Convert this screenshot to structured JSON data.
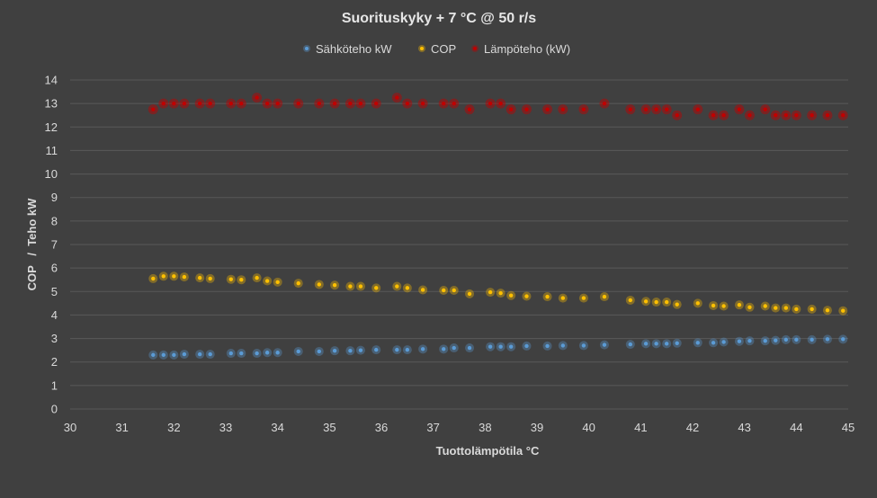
{
  "chart_data": {
    "type": "scatter",
    "title": "Suorituskyky + 7 °C @ 50 r/s",
    "xlabel": "Tuottolämpötila °C",
    "ylabel": "COP   /  Teho kW",
    "xlim": [
      30,
      45
    ],
    "ylim": [
      0,
      14
    ],
    "x_ticks": [
      30,
      31,
      32,
      33,
      34,
      35,
      36,
      37,
      38,
      39,
      40,
      41,
      42,
      43,
      44,
      45
    ],
    "y_ticks": [
      0,
      1,
      2,
      3,
      4,
      5,
      6,
      7,
      8,
      9,
      10,
      11,
      12,
      13,
      14
    ],
    "grid": "horizontal",
    "legend_position": "top",
    "series": [
      {
        "name": "Sähköteho kW",
        "color": "#5b9bd5",
        "points": [
          [
            31.6,
            2.3
          ],
          [
            31.8,
            2.3
          ],
          [
            32.0,
            2.3
          ],
          [
            32.2,
            2.33
          ],
          [
            32.5,
            2.33
          ],
          [
            32.7,
            2.33
          ],
          [
            33.1,
            2.37
          ],
          [
            33.3,
            2.37
          ],
          [
            33.6,
            2.37
          ],
          [
            33.8,
            2.4
          ],
          [
            34.0,
            2.4
          ],
          [
            34.4,
            2.45
          ],
          [
            34.8,
            2.45
          ],
          [
            35.1,
            2.48
          ],
          [
            35.4,
            2.48
          ],
          [
            35.6,
            2.5
          ],
          [
            35.9,
            2.52
          ],
          [
            36.3,
            2.52
          ],
          [
            36.5,
            2.52
          ],
          [
            36.8,
            2.55
          ],
          [
            37.2,
            2.55
          ],
          [
            37.4,
            2.6
          ],
          [
            37.7,
            2.6
          ],
          [
            38.1,
            2.65
          ],
          [
            38.3,
            2.65
          ],
          [
            38.5,
            2.65
          ],
          [
            38.8,
            2.68
          ],
          [
            39.2,
            2.68
          ],
          [
            39.5,
            2.7
          ],
          [
            39.9,
            2.7
          ],
          [
            40.3,
            2.73
          ],
          [
            40.8,
            2.75
          ],
          [
            41.1,
            2.78
          ],
          [
            41.3,
            2.78
          ],
          [
            41.5,
            2.78
          ],
          [
            41.7,
            2.8
          ],
          [
            42.1,
            2.82
          ],
          [
            42.4,
            2.82
          ],
          [
            42.6,
            2.85
          ],
          [
            42.9,
            2.88
          ],
          [
            43.1,
            2.9
          ],
          [
            43.4,
            2.9
          ],
          [
            43.6,
            2.92
          ],
          [
            43.8,
            2.95
          ],
          [
            44.0,
            2.95
          ],
          [
            44.3,
            2.95
          ],
          [
            44.6,
            2.97
          ],
          [
            44.9,
            2.97
          ]
        ]
      },
      {
        "name": "COP",
        "color": "#ffc000",
        "points": [
          [
            31.6,
            5.55
          ],
          [
            31.8,
            5.65
          ],
          [
            32.0,
            5.65
          ],
          [
            32.2,
            5.62
          ],
          [
            32.5,
            5.58
          ],
          [
            32.7,
            5.55
          ],
          [
            33.1,
            5.52
          ],
          [
            33.3,
            5.5
          ],
          [
            33.6,
            5.58
          ],
          [
            33.8,
            5.45
          ],
          [
            34.0,
            5.4
          ],
          [
            34.4,
            5.35
          ],
          [
            34.8,
            5.3
          ],
          [
            35.1,
            5.27
          ],
          [
            35.4,
            5.22
          ],
          [
            35.6,
            5.22
          ],
          [
            35.9,
            5.15
          ],
          [
            36.3,
            5.22
          ],
          [
            36.5,
            5.15
          ],
          [
            36.8,
            5.07
          ],
          [
            37.2,
            5.05
          ],
          [
            37.4,
            5.05
          ],
          [
            37.7,
            4.9
          ],
          [
            38.1,
            4.97
          ],
          [
            38.3,
            4.93
          ],
          [
            38.5,
            4.83
          ],
          [
            38.8,
            4.8
          ],
          [
            39.2,
            4.78
          ],
          [
            39.5,
            4.72
          ],
          [
            39.9,
            4.72
          ],
          [
            40.3,
            4.78
          ],
          [
            40.8,
            4.63
          ],
          [
            41.1,
            4.58
          ],
          [
            41.3,
            4.55
          ],
          [
            41.5,
            4.55
          ],
          [
            41.7,
            4.45
          ],
          [
            42.1,
            4.5
          ],
          [
            42.4,
            4.4
          ],
          [
            42.6,
            4.38
          ],
          [
            42.9,
            4.43
          ],
          [
            43.1,
            4.33
          ],
          [
            43.4,
            4.38
          ],
          [
            43.6,
            4.3
          ],
          [
            43.8,
            4.3
          ],
          [
            44.0,
            4.25
          ],
          [
            44.3,
            4.25
          ],
          [
            44.6,
            4.2
          ],
          [
            44.9,
            4.18
          ]
        ]
      },
      {
        "name": "Lämpöteho (kW)",
        "color": "#c00000",
        "points": [
          [
            31.6,
            12.75
          ],
          [
            31.8,
            13.0
          ],
          [
            32.0,
            13.0
          ],
          [
            32.2,
            13.0
          ],
          [
            32.5,
            13.0
          ],
          [
            32.7,
            13.0
          ],
          [
            33.1,
            13.0
          ],
          [
            33.3,
            13.0
          ],
          [
            33.6,
            13.25
          ],
          [
            33.8,
            13.0
          ],
          [
            34.0,
            13.0
          ],
          [
            34.4,
            13.0
          ],
          [
            34.8,
            13.0
          ],
          [
            35.1,
            13.0
          ],
          [
            35.4,
            13.0
          ],
          [
            35.6,
            13.0
          ],
          [
            35.9,
            13.0
          ],
          [
            36.3,
            13.25
          ],
          [
            36.5,
            13.0
          ],
          [
            36.8,
            13.0
          ],
          [
            37.2,
            13.0
          ],
          [
            37.4,
            13.0
          ],
          [
            37.7,
            12.75
          ],
          [
            38.1,
            13.0
          ],
          [
            38.3,
            13.0
          ],
          [
            38.5,
            12.75
          ],
          [
            38.8,
            12.75
          ],
          [
            39.2,
            12.75
          ],
          [
            39.5,
            12.75
          ],
          [
            39.9,
            12.75
          ],
          [
            40.3,
            13.0
          ],
          [
            40.8,
            12.75
          ],
          [
            41.1,
            12.75
          ],
          [
            41.3,
            12.75
          ],
          [
            41.5,
            12.75
          ],
          [
            41.7,
            12.5
          ],
          [
            42.1,
            12.75
          ],
          [
            42.4,
            12.5
          ],
          [
            42.6,
            12.5
          ],
          [
            42.9,
            12.75
          ],
          [
            43.1,
            12.5
          ],
          [
            43.4,
            12.75
          ],
          [
            43.6,
            12.5
          ],
          [
            43.8,
            12.5
          ],
          [
            44.0,
            12.5
          ],
          [
            44.3,
            12.5
          ],
          [
            44.6,
            12.5
          ],
          [
            44.9,
            12.5
          ]
        ]
      }
    ]
  }
}
